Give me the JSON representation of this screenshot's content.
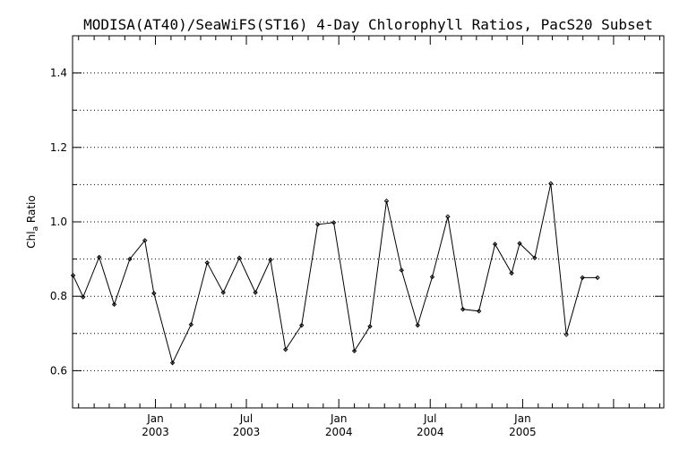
{
  "chart_data": {
    "type": "line",
    "title": "MODISA(AT40)/SeaWiFS(ST16) 4-Day Chlorophyll Ratios, PacS20 Subset",
    "ylabel": "Chl",
    "ylabel_sub": "a",
    "ylabel_rest": " Ratio",
    "ylim": [
      0.5,
      1.5
    ],
    "yticks": [
      "0.6",
      "0.8",
      "1.0",
      "1.2",
      "1.4"
    ],
    "ytick_values": [
      0.6,
      0.8,
      1.0,
      1.2,
      1.4
    ],
    "xlim": [
      "2002-07-20",
      "2005-10-09"
    ],
    "x_tick_labels": [
      {
        "date": "2003-01-01",
        "month": "Jan",
        "year": "2003"
      },
      {
        "date": "2003-07-01",
        "month": "Jul",
        "year": "2003"
      },
      {
        "date": "2004-01-01",
        "month": "Jan",
        "year": "2004"
      },
      {
        "date": "2004-07-01",
        "month": "Jul",
        "year": "2004"
      },
      {
        "date": "2005-01-01",
        "month": "Jan",
        "year": "2005"
      }
    ],
    "grid": "horizontal-dotted",
    "series": [
      {
        "x": [
          "2002-07-21",
          "2002-08-10",
          "2002-09-11",
          "2002-10-11",
          "2002-11-11",
          "2002-12-11",
          "2002-12-29",
          "2003-02-04",
          "2003-03-13",
          "2003-04-14",
          "2003-05-16",
          "2003-06-17",
          "2003-07-19",
          "2003-08-18",
          "2003-09-17",
          "2003-10-19",
          "2003-11-20",
          "2003-12-22",
          "2004-02-01",
          "2004-03-03",
          "2004-04-05",
          "2004-05-05",
          "2004-06-06",
          "2004-07-05",
          "2004-08-05",
          "2004-09-04",
          "2004-10-06",
          "2004-11-07",
          "2004-12-10",
          "2004-12-26",
          "2005-01-25",
          "2005-02-26",
          "2005-03-29",
          "2005-04-30",
          "2005-05-30"
        ],
        "values": [
          0.856,
          0.798,
          0.905,
          0.778,
          0.9,
          0.95,
          0.808,
          0.621,
          0.724,
          0.89,
          0.81,
          0.903,
          0.81,
          0.898,
          0.657,
          0.722,
          0.993,
          0.998,
          0.653,
          0.719,
          1.056,
          0.87,
          0.722,
          0.852,
          1.014,
          0.765,
          0.76,
          0.94,
          0.862,
          0.942,
          0.903,
          1.103,
          0.697,
          0.85,
          0.85
        ]
      }
    ]
  }
}
